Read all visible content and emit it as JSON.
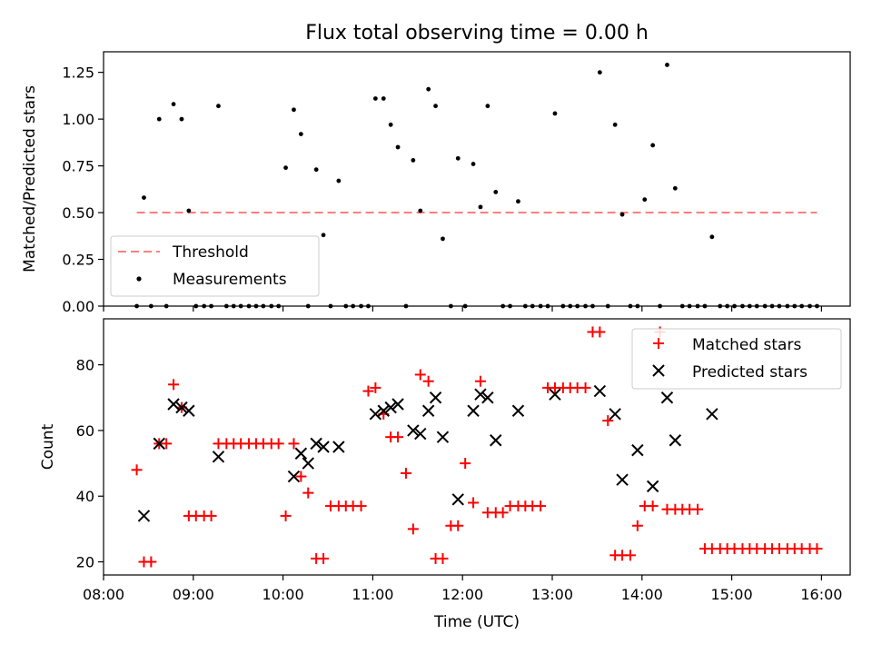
{
  "title": "Flux total observing time = 0.00 h",
  "colors": {
    "threshold": "#ff7f7f",
    "measurement": "#000000",
    "matched": "#ff0000",
    "predicted": "#000000",
    "axes": "#000000",
    "background": "#ffffff"
  },
  "chart_data": [
    {
      "type": "scatter",
      "title": "Flux total observing time = 0.00 h",
      "xlabel": "",
      "ylabel": "Matched/Predicted stars",
      "xlim": [
        8.0,
        16.32
      ],
      "ylim": [
        0,
        1.36
      ],
      "yticks": [
        0,
        0.25,
        0.5,
        0.75,
        1.0,
        1.25
      ],
      "ytick_labels": [
        "0.00",
        "0.25",
        "0.50",
        "0.75",
        "1.00",
        "1.25"
      ],
      "xticks": [
        8,
        9,
        10,
        11,
        12,
        13,
        14,
        15,
        16
      ],
      "xtick_labels": [],
      "legend": {
        "position": "lower-left",
        "entries": [
          "Threshold",
          "Measurements"
        ]
      },
      "threshold": {
        "name": "Threshold",
        "y": 0.5,
        "x_start": 8.37,
        "x_end": 15.95,
        "style": "dashed"
      },
      "series": [
        {
          "name": "Measurements",
          "x": [
            8.37,
            8.45,
            8.53,
            8.62,
            8.7,
            8.78,
            8.87,
            8.95,
            9.03,
            9.12,
            9.2,
            9.28,
            9.37,
            9.45,
            9.53,
            9.62,
            9.7,
            9.78,
            9.87,
            9.95,
            10.03,
            10.12,
            10.2,
            10.28,
            10.37,
            10.45,
            10.53,
            10.62,
            10.7,
            10.78,
            10.87,
            10.95,
            11.03,
            11.12,
            11.2,
            11.28,
            11.37,
            11.45,
            11.53,
            11.62,
            11.7,
            11.78,
            11.87,
            11.95,
            12.03,
            12.12,
            12.2,
            12.28,
            12.37,
            12.45,
            12.53,
            12.62,
            12.7,
            12.78,
            12.87,
            12.95,
            13.03,
            13.12,
            13.2,
            13.28,
            13.37,
            13.45,
            13.53,
            13.62,
            13.7,
            13.78,
            13.87,
            13.95,
            14.03,
            14.12,
            14.2,
            14.28,
            14.37,
            14.45,
            14.53,
            14.62,
            14.7,
            14.78,
            14.87,
            14.95,
            15.03,
            15.12,
            15.2,
            15.28,
            15.37,
            15.45,
            15.53,
            15.62,
            15.7,
            15.78,
            15.87,
            15.95
          ],
          "y": [
            0.0,
            0.58,
            0.0,
            1.0,
            0.0,
            1.08,
            1.0,
            0.51,
            0.0,
            0.0,
            0.0,
            1.07,
            0.0,
            0.0,
            0.0,
            0.0,
            0.0,
            0.0,
            0.0,
            0.0,
            0.74,
            1.05,
            0.92,
            0.0,
            0.73,
            0.38,
            0.0,
            0.67,
            0.0,
            0.0,
            0.0,
            0.0,
            1.11,
            1.11,
            0.97,
            0.85,
            0.0,
            0.78,
            0.51,
            1.16,
            1.07,
            0.36,
            0.0,
            0.79,
            0.0,
            0.76,
            0.53,
            1.07,
            0.61,
            0.0,
            0.0,
            0.56,
            0.0,
            0.0,
            0.0,
            0.0,
            1.03,
            0.0,
            0.0,
            0.0,
            0.0,
            0.0,
            1.25,
            0.0,
            0.97,
            0.49,
            0.0,
            0.0,
            0.57,
            0.86,
            0.0,
            1.29,
            0.63,
            0.0,
            0.0,
            0.0,
            0.0,
            0.37,
            0.0,
            0.0,
            0.0,
            0.0,
            0.0,
            0.0,
            0.0,
            0.0,
            0.0,
            0.0,
            0.0,
            0.0,
            0.0,
            0.0
          ]
        }
      ]
    },
    {
      "type": "scatter",
      "title": "",
      "xlabel": "Time (UTC)",
      "ylabel": "Count",
      "xlim": [
        8.0,
        16.32
      ],
      "ylim": [
        16,
        94
      ],
      "yticks": [
        20,
        40,
        60,
        80
      ],
      "ytick_labels": [
        "20",
        "40",
        "60",
        "80"
      ],
      "xticks": [
        8,
        9,
        10,
        11,
        12,
        13,
        14,
        15,
        16
      ],
      "xtick_labels": [
        "08:00",
        "09:00",
        "10:00",
        "11:00",
        "12:00",
        "13:00",
        "14:00",
        "15:00",
        "16:00"
      ],
      "legend": {
        "position": "top-right",
        "entries": [
          "Matched stars",
          "Predicted stars"
        ]
      },
      "series": [
        {
          "name": "Matched stars",
          "marker": "plus",
          "x": [
            8.37,
            8.45,
            8.53,
            8.62,
            8.7,
            8.78,
            8.87,
            8.95,
            9.03,
            9.12,
            9.2,
            9.28,
            9.37,
            9.45,
            9.53,
            9.62,
            9.7,
            9.78,
            9.87,
            9.95,
            10.03,
            10.12,
            10.2,
            10.28,
            10.37,
            10.45,
            10.53,
            10.62,
            10.7,
            10.78,
            10.87,
            10.95,
            11.03,
            11.12,
            11.2,
            11.28,
            11.37,
            11.45,
            11.53,
            11.62,
            11.7,
            11.78,
            11.87,
            11.95,
            12.03,
            12.12,
            12.2,
            12.28,
            12.37,
            12.45,
            12.53,
            12.62,
            12.7,
            12.78,
            12.87,
            12.95,
            13.03,
            13.12,
            13.2,
            13.28,
            13.37,
            13.45,
            13.53,
            13.62,
            13.7,
            13.78,
            13.87,
            13.95,
            14.03,
            14.12,
            14.2,
            14.28,
            14.37,
            14.45,
            14.53,
            14.62,
            14.7,
            14.78,
            14.87,
            14.95,
            15.03,
            15.12,
            15.2,
            15.28,
            15.37,
            15.45,
            15.53,
            15.62,
            15.7,
            15.78,
            15.87,
            15.95
          ],
          "y": [
            48,
            20,
            20,
            56,
            56,
            74,
            67,
            34,
            34,
            34,
            34,
            56,
            56,
            56,
            56,
            56,
            56,
            56,
            56,
            56,
            34,
            56,
            46,
            41,
            21,
            21,
            37,
            37,
            37,
            37,
            37,
            72,
            73,
            65,
            58,
            58,
            47,
            30,
            77,
            75,
            21,
            21,
            31,
            31,
            50,
            38,
            75,
            35,
            35,
            35,
            37,
            37,
            37,
            37,
            37,
            73,
            73,
            73,
            73,
            73,
            73,
            90,
            90,
            63,
            22,
            22,
            22,
            31,
            37,
            37,
            90,
            36,
            36,
            36,
            36,
            36,
            24,
            24,
            24,
            24,
            24,
            24,
            24,
            24,
            24,
            24,
            24,
            24,
            24,
            24,
            24,
            24
          ]
        },
        {
          "name": "Predicted stars",
          "marker": "x",
          "x": [
            8.45,
            8.62,
            8.78,
            8.87,
            8.95,
            9.28,
            10.12,
            10.2,
            10.28,
            10.37,
            10.45,
            10.62,
            11.03,
            11.12,
            11.2,
            11.28,
            11.45,
            11.53,
            11.62,
            11.7,
            11.78,
            11.95,
            12.12,
            12.2,
            12.28,
            12.37,
            12.62,
            13.03,
            13.53,
            13.7,
            13.78,
            13.95,
            14.12,
            14.28,
            14.37,
            14.78
          ],
          "y": [
            34,
            56,
            68,
            67,
            66,
            52,
            46,
            53,
            50,
            56,
            55,
            55,
            65,
            66,
            67,
            68,
            60,
            59,
            66,
            70,
            58,
            39,
            66,
            71,
            70,
            57,
            66,
            71,
            72,
            65,
            45,
            54,
            43,
            70,
            57,
            65
          ]
        }
      ]
    }
  ]
}
